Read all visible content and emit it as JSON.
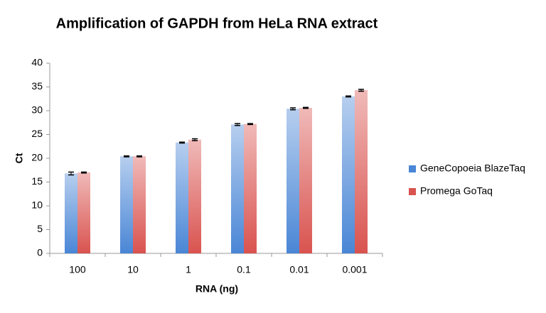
{
  "chart_data": {
    "type": "bar",
    "title": "Amplification of GAPDH from HeLa RNA extract",
    "x_label": "RNA (ng)",
    "y_label": "Ct",
    "categories": [
      "100",
      "10",
      "1",
      "0.1",
      "0.01",
      "0.001"
    ],
    "series": [
      {
        "name": "GeneCopoeia BlazeTaq",
        "color": "#4a86d6",
        "values": [
          16.8,
          20.4,
          23.3,
          27.1,
          30.4,
          33.0
        ],
        "errors": [
          0.3,
          0.1,
          0.1,
          0.2,
          0.2,
          0.1
        ]
      },
      {
        "name": "Promega GoTaq",
        "color": "#d9534f",
        "values": [
          17.0,
          20.4,
          23.9,
          27.2,
          30.6,
          34.3
        ],
        "errors": [
          0.1,
          0.1,
          0.2,
          0.1,
          0.1,
          0.2
        ]
      }
    ],
    "ylim": [
      0,
      40
    ],
    "yticks": [
      0,
      5,
      10,
      15,
      20,
      25,
      30,
      35,
      40
    ],
    "grid": false,
    "legend": "right"
  }
}
